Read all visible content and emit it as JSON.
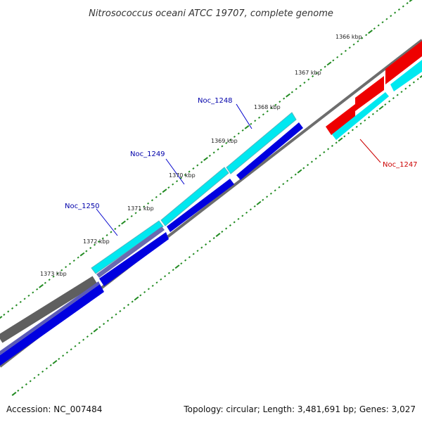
{
  "title": "Nitrosococcus oceani ATCC 19707, complete genome",
  "footer": {
    "accession": "Accession: NC_007484",
    "summary": "Topology: circular; Length: 3,481,691 bp; Genes: 3,027"
  },
  "colors": {
    "forward_gene": "#0000e0",
    "forward_gene_light": "#00e8f0",
    "reverse_gene": "#ee0000",
    "reverse_gene_light": "#00e8f0",
    "backbone": "#888888",
    "tick": "#228b22",
    "label_forward": "#0000aa",
    "label_reverse": "#cc0000"
  },
  "kbp_labels": [
    "1366 kbp",
    "1367 kbp",
    "1368 kbp",
    "1369 kbp",
    "1370 kbp",
    "1371 kbp",
    "1372 kbp",
    "1373 kbp"
  ],
  "gene_labels": {
    "noc_1247": "Noc_1247",
    "noc_1248": "Noc_1248",
    "noc_1249": "Noc_1249",
    "noc_1250": "Noc_1250"
  }
}
